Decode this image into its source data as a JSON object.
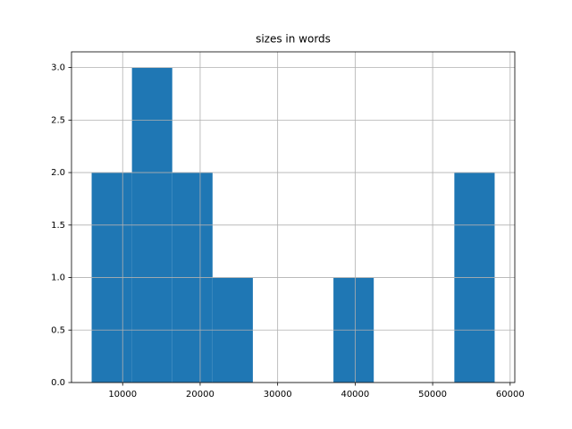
{
  "chart_data": {
    "type": "histogram",
    "title": "sizes in words",
    "bins": [
      6000,
      11200,
      16400,
      21600,
      26800,
      32000,
      37200,
      42400,
      47600,
      52800,
      58000
    ],
    "counts": [
      2,
      3,
      2,
      1,
      0,
      0,
      1,
      0,
      0,
      2
    ],
    "color": "#1f77b4",
    "xlim": [
      3400,
      60600
    ],
    "xticks": [
      10000,
      20000,
      30000,
      40000,
      50000,
      60000
    ],
    "ylim": [
      0,
      3.15
    ],
    "yticks": [
      {
        "value": 0,
        "label": "0.0"
      },
      0.5,
      {
        "value": 1,
        "label": "1.0"
      },
      1.5,
      {
        "value": 2,
        "label": "2.0"
      },
      2.5,
      {
        "value": 3,
        "label": "3.0"
      }
    ],
    "grid": true
  }
}
